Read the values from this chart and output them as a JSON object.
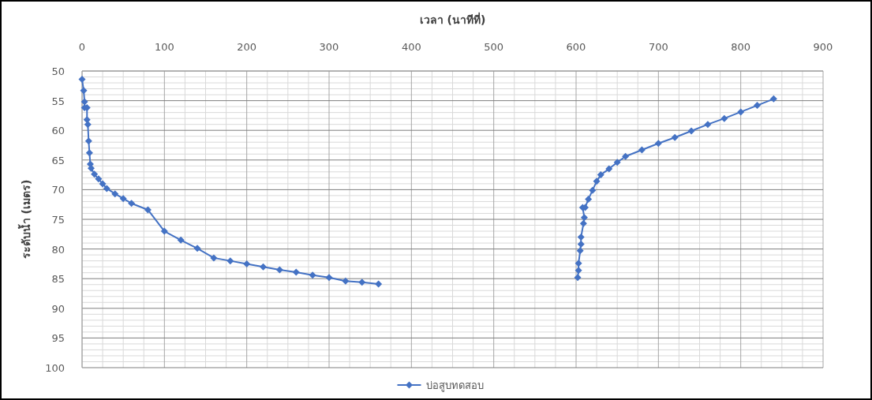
{
  "chart_data": {
    "type": "line",
    "xlabel": "เวลา (นาทีที่)",
    "ylabel": "ระดับน้ำ (เมตร)",
    "xlim": [
      0,
      900
    ],
    "xticks": [
      0,
      100,
      200,
      300,
      400,
      500,
      600,
      700,
      800,
      900
    ],
    "ylim": [
      100,
      50
    ],
    "yticks": [
      50,
      55,
      60,
      65,
      70,
      75,
      80,
      85,
      90,
      95,
      100
    ],
    "grid": true,
    "legend": "bottom",
    "marker": "diamond",
    "line_style": "solid",
    "series": [
      {
        "name": "บ่อสูบทดสอบ",
        "color": "#4472c4",
        "x": [
          0,
          2,
          3,
          3,
          6,
          6,
          7,
          8,
          9,
          10,
          11,
          15,
          20,
          25,
          30,
          40,
          50,
          60,
          80,
          100,
          120,
          140,
          160,
          180,
          200,
          220,
          240,
          260,
          280,
          300,
          320,
          340,
          360
        ],
        "values": [
          51.4,
          53.3,
          55.2,
          56.2,
          56.2,
          58.2,
          59.0,
          61.8,
          63.8,
          65.7,
          66.4,
          67.4,
          68.2,
          69.0,
          69.8,
          70.7,
          71.5,
          72.3,
          73.4,
          77.0,
          78.5,
          79.9,
          81.5,
          82.0,
          82.5,
          83.0,
          83.5,
          83.9,
          84.4,
          84.8,
          85.4,
          85.6,
          85.9
        ]
      },
      {
        "color": "#4472c4",
        "x": [
          602,
          603,
          603,
          605,
          606,
          606,
          609,
          610,
          608,
          611,
          615,
          620,
          625,
          630,
          640,
          650,
          660,
          680,
          700,
          720,
          740,
          760,
          780,
          800,
          820,
          840
        ],
        "values": [
          84.8,
          83.6,
          82.4,
          80.3,
          79.2,
          78.0,
          75.7,
          74.7,
          73.0,
          73.0,
          71.6,
          70.1,
          68.6,
          67.5,
          66.5,
          65.4,
          64.4,
          63.3,
          62.2,
          61.2,
          60.1,
          59.0,
          58.0,
          56.9,
          55.8,
          54.7
        ]
      }
    ]
  }
}
